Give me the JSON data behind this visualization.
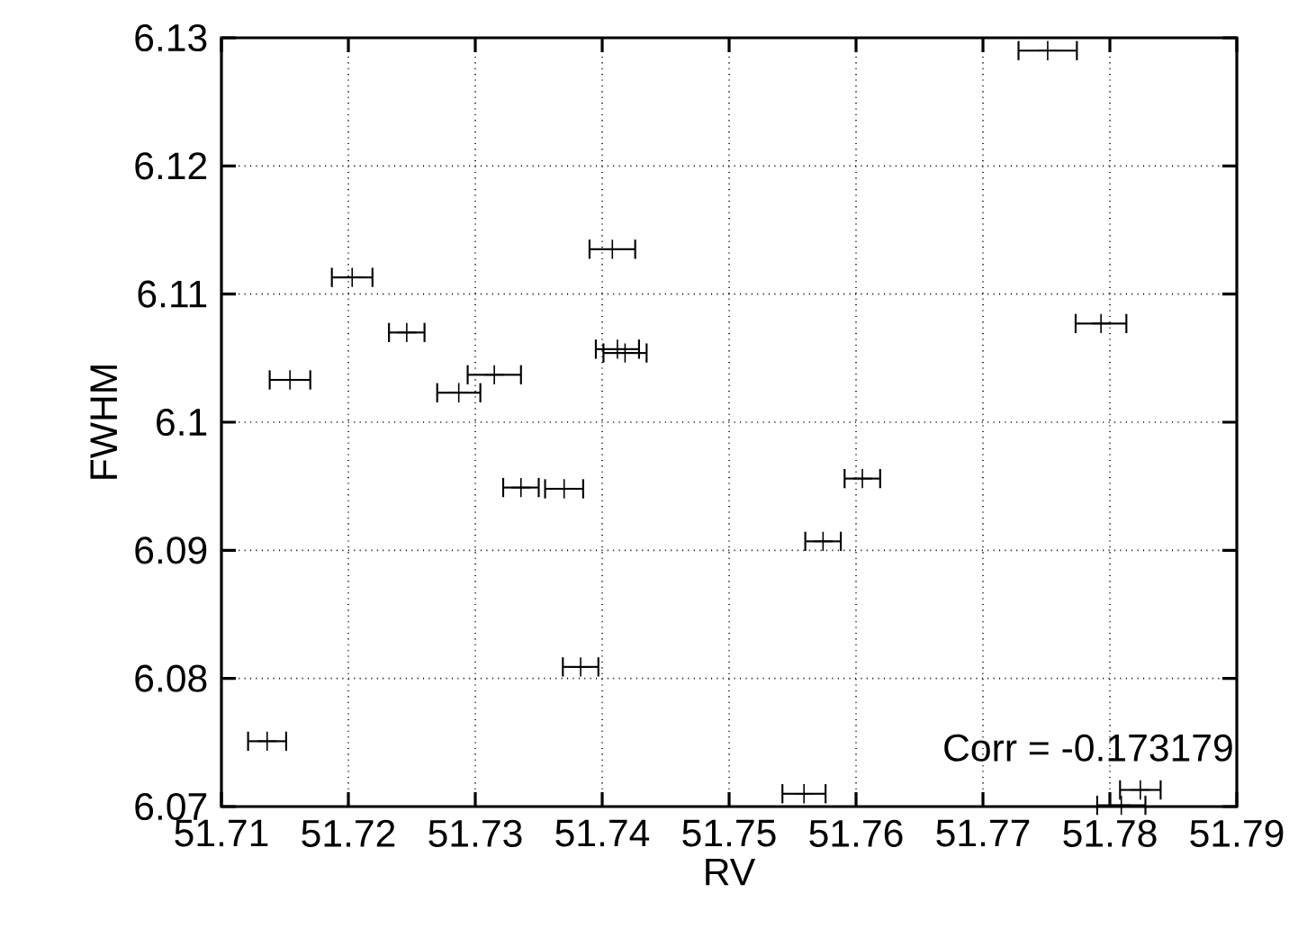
{
  "chart_data": {
    "type": "scatter",
    "xlabel": "RV",
    "ylabel": "FWHM",
    "x": [
      51.7408,
      51.7203,
      51.7246,
      51.7154,
      51.7315,
      51.7287,
      51.7412,
      51.7418,
      51.7751,
      51.7793,
      51.7336,
      51.737,
      51.7383,
      51.7136,
      51.7605,
      51.7574,
      51.7559,
      51.7824,
      51.7809
    ],
    "values": [
      6.1135,
      6.1113,
      6.107,
      6.1033,
      6.1037,
      6.1023,
      6.1057,
      6.1054,
      6.129,
      6.1077,
      6.0949,
      6.0948,
      6.0809,
      6.0751,
      6.0956,
      6.0907,
      6.071,
      6.0713,
      6.0701
    ],
    "xerrors": [
      0.0018,
      0.0016,
      0.0014,
      0.0016,
      0.0021,
      0.0017,
      0.0017,
      0.0017,
      0.0023,
      0.002,
      0.0014,
      0.0015,
      0.0014,
      0.0015,
      0.0014,
      0.0014,
      0.0017,
      0.0016,
      0.0019
    ],
    "color": "#000000",
    "marker": "cross",
    "grid": true,
    "xlim": [
      51.71,
      51.79
    ],
    "xticks": [
      51.71,
      51.72,
      51.73,
      51.74,
      51.75,
      51.76,
      51.77,
      51.78,
      51.79
    ],
    "ylim": [
      6.07,
      6.13
    ],
    "yticks": [
      6.07,
      6.08,
      6.09,
      6.1,
      6.11,
      6.12,
      6.13
    ],
    "annotations": [
      "Corr = -0.173179"
    ]
  }
}
